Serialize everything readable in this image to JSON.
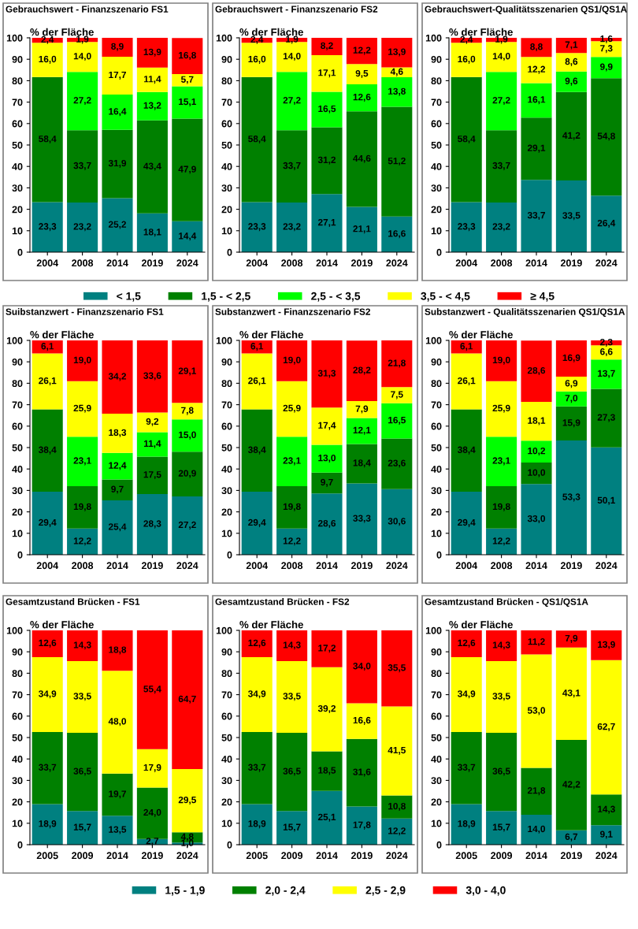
{
  "chart_data": [
    {
      "type": "bar",
      "stacked": true,
      "title": "Gebrauchswert - Finanzszenario FS1",
      "ylabel": "% der Fläche",
      "categories": [
        "2004",
        "2008",
        "2014",
        "2019",
        "2024"
      ],
      "ylim": [
        0,
        100
      ],
      "yticks": [
        0,
        10,
        20,
        30,
        40,
        50,
        60,
        70,
        80,
        90,
        100
      ],
      "grid": false,
      "legend": "bottom",
      "series": [
        {
          "name": "< 1,5",
          "color": "#008080",
          "values": [
            23.3,
            23.2,
            25.2,
            18.1,
            14.4
          ],
          "value_labels": [
            "23,3",
            "23,2",
            "25,2",
            "18,1",
            "14,4"
          ]
        },
        {
          "name": "1,5 - < 2,5",
          "color": "#008000",
          "values": [
            58.4,
            33.7,
            31.9,
            43.4,
            47.9
          ],
          "value_labels": [
            "58,4",
            "33,7",
            "31,9",
            "43,4",
            "47,9"
          ]
        },
        {
          "name": "2,5 - < 3,5",
          "color": "#00ff00",
          "values": [
            null,
            27.2,
            16.4,
            13.2,
            15.1
          ],
          "value_labels": [
            null,
            "27,2",
            "16,4",
            "13,2",
            "15,1"
          ]
        },
        {
          "name": "3,5 - < 4,5",
          "color": "#ffff00",
          "values": [
            16.0,
            14.0,
            17.7,
            11.4,
            5.7
          ],
          "value_labels": [
            "16,0",
            "14,0",
            "17,7",
            "11,4",
            "5,7"
          ]
        },
        {
          "name": "≥ 4,5",
          "color": "#ff0000",
          "values": [
            2.4,
            1.9,
            8.9,
            13.9,
            16.8
          ],
          "value_labels": [
            "2,4",
            "1,9",
            "8,9",
            "13,9",
            "16,8"
          ]
        }
      ]
    },
    {
      "type": "bar",
      "stacked": true,
      "title": "Gebrauchswert - Finanzszenario FS2",
      "ylabel": "% der Fläche",
      "categories": [
        "2004",
        "2008",
        "2014",
        "2019",
        "2024"
      ],
      "ylim": [
        0,
        100
      ],
      "yticks": [
        0,
        10,
        20,
        30,
        40,
        50,
        60,
        70,
        80,
        90,
        100
      ],
      "grid": false,
      "series": [
        {
          "color": "#008080",
          "values": [
            23.3,
            23.2,
            27.1,
            21.1,
            16.6
          ],
          "value_labels": [
            "23,3",
            "23,2",
            "27,1",
            "21,1",
            "16,6"
          ]
        },
        {
          "color": "#008000",
          "values": [
            58.4,
            33.7,
            31.2,
            44.6,
            51.2
          ],
          "value_labels": [
            "58,4",
            "33,7",
            "31,2",
            "44,6",
            "51,2"
          ]
        },
        {
          "color": "#00ff00",
          "values": [
            null,
            27.2,
            16.5,
            12.6,
            13.8
          ],
          "value_labels": [
            null,
            "27,2",
            "16,5",
            "12,6",
            "13,8"
          ]
        },
        {
          "color": "#ffff00",
          "values": [
            16.0,
            14.0,
            17.1,
            9.5,
            4.6
          ],
          "value_labels": [
            "16,0",
            "14,0",
            "17,1",
            "9,5",
            "4,6"
          ]
        },
        {
          "color": "#ff0000",
          "values": [
            2.4,
            1.9,
            8.2,
            12.2,
            13.9
          ],
          "value_labels": [
            "2,4",
            "1,9",
            "8,2",
            "12,2",
            "13,9"
          ]
        }
      ]
    },
    {
      "type": "bar",
      "stacked": true,
      "title": "Gebrauchswert-Qualitätsszenarien QS1/QS1A",
      "ylabel": "% der Fläche",
      "categories": [
        "2004",
        "2008",
        "2014",
        "2019",
        "2024"
      ],
      "ylim": [
        0,
        100
      ],
      "yticks": [
        0,
        10,
        20,
        30,
        40,
        50,
        60,
        70,
        80,
        90,
        100
      ],
      "grid": false,
      "series": [
        {
          "color": "#008080",
          "values": [
            23.3,
            23.2,
            33.7,
            33.5,
            26.4
          ],
          "value_labels": [
            "23,3",
            "23,2",
            "33,7",
            "33,5",
            "26,4"
          ]
        },
        {
          "color": "#008000",
          "values": [
            58.4,
            33.7,
            29.1,
            41.2,
            54.8
          ],
          "value_labels": [
            "58,4",
            "33,7",
            "29,1",
            "41,2",
            "54,8"
          ]
        },
        {
          "color": "#00ff00",
          "values": [
            null,
            27.2,
            16.1,
            9.6,
            9.9
          ],
          "value_labels": [
            null,
            "27,2",
            "16,1",
            "9,6",
            "9,9"
          ]
        },
        {
          "color": "#ffff00",
          "values": [
            16.0,
            14.0,
            12.2,
            8.6,
            7.3
          ],
          "value_labels": [
            "16,0",
            "14,0",
            "12,2",
            "8,6",
            "7,3"
          ]
        },
        {
          "color": "#ff0000",
          "values": [
            2.4,
            1.9,
            8.8,
            7.1,
            1.6
          ],
          "value_labels": [
            "2,4",
            "1,9",
            "8,8",
            "7,1",
            "1,6"
          ]
        }
      ]
    },
    {
      "type": "bar",
      "stacked": true,
      "title": "Suibstanzwert - Finanzszenario FS1",
      "ylabel": "% der Fläche",
      "categories": [
        "2004",
        "2008",
        "2014",
        "2019",
        "2024"
      ],
      "ylim": [
        0,
        100
      ],
      "yticks": [
        0,
        10,
        20,
        30,
        40,
        50,
        60,
        70,
        80,
        90,
        100
      ],
      "grid": false,
      "series": [
        {
          "color": "#008080",
          "values": [
            29.4,
            12.2,
            25.4,
            28.3,
            27.2
          ],
          "value_labels": [
            "29,4",
            "12,2",
            "25,4",
            "28,3",
            "27,2"
          ]
        },
        {
          "color": "#008000",
          "values": [
            38.4,
            19.8,
            9.7,
            17.5,
            20.9
          ],
          "value_labels": [
            "38,4",
            "19,8",
            "9,7",
            "17,5",
            "20,9"
          ]
        },
        {
          "color": "#00ff00",
          "values": [
            null,
            23.1,
            12.4,
            11.4,
            15.0
          ],
          "value_labels": [
            null,
            "23,1",
            "12,4",
            "11,4",
            "15,0"
          ]
        },
        {
          "color": "#ffff00",
          "values": [
            26.1,
            25.9,
            18.3,
            9.2,
            7.8
          ],
          "value_labels": [
            "26,1",
            "25,9",
            "18,3",
            "9,2",
            "7,8"
          ]
        },
        {
          "color": "#ff0000",
          "values": [
            6.1,
            19.0,
            34.2,
            33.6,
            29.1
          ],
          "value_labels": [
            "6,1",
            "19,0",
            "34,2",
            "33,6",
            "29,1"
          ]
        }
      ]
    },
    {
      "type": "bar",
      "stacked": true,
      "title": "Substanzwert - Finanzszenario FS2",
      "ylabel": "% der Fläche",
      "categories": [
        "2004",
        "2008",
        "2014",
        "2019",
        "2024"
      ],
      "ylim": [
        0,
        100
      ],
      "yticks": [
        0,
        10,
        20,
        30,
        40,
        50,
        60,
        70,
        80,
        90,
        100
      ],
      "grid": false,
      "series": [
        {
          "color": "#008080",
          "values": [
            29.4,
            12.2,
            28.6,
            33.3,
            30.6
          ],
          "value_labels": [
            "29,4",
            "12,2",
            "28,6",
            "33,3",
            "30,6"
          ]
        },
        {
          "color": "#008000",
          "values": [
            38.4,
            19.8,
            9.7,
            18.4,
            23.6
          ],
          "value_labels": [
            "38,4",
            "19,8",
            "9,7",
            "18,4",
            "23,6"
          ]
        },
        {
          "color": "#00ff00",
          "values": [
            null,
            23.1,
            13.0,
            12.1,
            16.5
          ],
          "value_labels": [
            null,
            "23,1",
            "13,0",
            "12,1",
            "16,5"
          ]
        },
        {
          "color": "#ffff00",
          "values": [
            26.1,
            25.9,
            17.4,
            7.9,
            7.5
          ],
          "value_labels": [
            "26,1",
            "25,9",
            "17,4",
            "7,9",
            "7,5"
          ]
        },
        {
          "color": "#ff0000",
          "values": [
            6.1,
            19.0,
            31.3,
            28.2,
            21.8
          ],
          "value_labels": [
            "6,1",
            "19,0",
            "31,3",
            "28,2",
            "21,8"
          ]
        }
      ]
    },
    {
      "type": "bar",
      "stacked": true,
      "title": "Substanzwert - Qualitätsszenarien QS1/QS1A",
      "ylabel": "% der Fläche",
      "categories": [
        "2004",
        "2008",
        "2014",
        "2019",
        "2024"
      ],
      "ylim": [
        0,
        100
      ],
      "yticks": [
        0,
        10,
        20,
        30,
        40,
        50,
        60,
        70,
        80,
        90,
        100
      ],
      "grid": false,
      "series": [
        {
          "color": "#008080",
          "values": [
            29.4,
            12.2,
            33.0,
            53.3,
            50.1
          ],
          "value_labels": [
            "29,4",
            "12,2",
            "33,0",
            "53,3",
            "50,1"
          ]
        },
        {
          "color": "#008000",
          "values": [
            38.4,
            19.8,
            10.0,
            15.9,
            27.3
          ],
          "value_labels": [
            "38,4",
            "19,8",
            "10,0",
            "15,9",
            "27,3"
          ]
        },
        {
          "color": "#00ff00",
          "values": [
            null,
            23.1,
            10.2,
            7.0,
            13.7
          ],
          "value_labels": [
            null,
            "23,1",
            "10,2",
            "7,0",
            "13,7"
          ]
        },
        {
          "color": "#ffff00",
          "values": [
            26.1,
            25.9,
            18.1,
            6.9,
            6.6
          ],
          "value_labels": [
            "26,1",
            "25,9",
            "18,1",
            "6,9",
            "6,6"
          ]
        },
        {
          "color": "#ff0000",
          "values": [
            6.1,
            19.0,
            28.6,
            16.9,
            2.3
          ],
          "value_labels": [
            "6,1",
            "19,0",
            "28,6",
            "16,9",
            "2,3"
          ]
        }
      ]
    },
    {
      "type": "bar",
      "stacked": true,
      "title": "Gesamtzustand Brücken - FS1",
      "ylabel": "% der Fläche",
      "categories": [
        "2005",
        "2009",
        "2014",
        "2019",
        "2024"
      ],
      "ylim": [
        0,
        100
      ],
      "yticks": [
        0,
        10,
        20,
        30,
        40,
        50,
        60,
        70,
        80,
        90,
        100
      ],
      "grid": false,
      "legend": "bottom",
      "series": [
        {
          "name": "1,5 - 1,9",
          "color": "#008080",
          "values": [
            18.9,
            15.7,
            13.5,
            2.7,
            1.0
          ],
          "value_labels": [
            "18,9",
            "15,7",
            "13,5",
            "2,7",
            "1,0"
          ]
        },
        {
          "name": "2,0 - 2,4",
          "color": "#008000",
          "values": [
            33.7,
            36.5,
            19.7,
            24.0,
            4.8
          ],
          "value_labels": [
            "33,7",
            "36,5",
            "19,7",
            "24,0",
            "4,8"
          ]
        },
        {
          "name": "2,5 - 2,9",
          "color": "#ffff00",
          "values": [
            34.9,
            33.5,
            48.0,
            17.9,
            29.5
          ],
          "value_labels": [
            "34,9",
            "33,5",
            "48,0",
            "17,9",
            "29,5"
          ]
        },
        {
          "name": "3,0 - 4,0",
          "color": "#ff0000",
          "values": [
            12.6,
            14.3,
            18.8,
            55.4,
            64.7
          ],
          "value_labels": [
            "12,6",
            "14,3",
            "18,8",
            "55,4",
            "64,7"
          ]
        }
      ]
    },
    {
      "type": "bar",
      "stacked": true,
      "title": "Gesamtzustand Brücken - FS2",
      "ylabel": "% der Fläche",
      "categories": [
        "2005",
        "2009",
        "2014",
        "2019",
        "2024"
      ],
      "ylim": [
        0,
        100
      ],
      "yticks": [
        0,
        10,
        20,
        30,
        40,
        50,
        60,
        70,
        80,
        90,
        100
      ],
      "grid": false,
      "series": [
        {
          "color": "#008080",
          "values": [
            18.9,
            15.7,
            25.1,
            17.8,
            12.2
          ],
          "value_labels": [
            "18,9",
            "15,7",
            "25,1",
            "17,8",
            "12,2"
          ]
        },
        {
          "color": "#008000",
          "values": [
            33.7,
            36.5,
            18.5,
            31.6,
            10.8
          ],
          "value_labels": [
            "33,7",
            "36,5",
            "18,5",
            "31,6",
            "10,8"
          ]
        },
        {
          "color": "#ffff00",
          "values": [
            34.9,
            33.5,
            39.2,
            16.6,
            41.5
          ],
          "value_labels": [
            "34,9",
            "33,5",
            "39,2",
            "16,6",
            "41,5"
          ]
        },
        {
          "color": "#ff0000",
          "values": [
            12.6,
            14.3,
            17.2,
            34.0,
            35.5
          ],
          "value_labels": [
            "12,6",
            "14,3",
            "17,2",
            "34,0",
            "35,5"
          ]
        }
      ]
    },
    {
      "type": "bar",
      "stacked": true,
      "title": "Gesamtzustand Brücken - QS1/QS1A",
      "ylabel": "% der Fläche",
      "categories": [
        "2005",
        "2009",
        "2014",
        "2019",
        "2024"
      ],
      "ylim": [
        0,
        100
      ],
      "yticks": [
        0,
        10,
        20,
        30,
        40,
        50,
        60,
        70,
        80,
        90,
        100
      ],
      "grid": false,
      "series": [
        {
          "color": "#008080",
          "values": [
            18.9,
            15.7,
            14.0,
            6.7,
            9.1
          ],
          "value_labels": [
            "18,9",
            "15,7",
            "14,0",
            "6,7",
            "9,1"
          ]
        },
        {
          "color": "#008000",
          "values": [
            33.7,
            36.5,
            21.8,
            42.2,
            14.3
          ],
          "value_labels": [
            "33,7",
            "36,5",
            "21,8",
            "42,2",
            "14,3"
          ]
        },
        {
          "color": "#ffff00",
          "values": [
            34.9,
            33.5,
            53.0,
            43.1,
            62.7
          ],
          "value_labels": [
            "34,9",
            "33,5",
            "53,0",
            "43,1",
            "62,7"
          ]
        },
        {
          "color": "#ff0000",
          "values": [
            12.6,
            14.3,
            11.2,
            7.9,
            13.9
          ],
          "value_labels": [
            "12,6",
            "14,3",
            "11,2",
            "7,9",
            "13,9"
          ]
        }
      ]
    }
  ]
}
